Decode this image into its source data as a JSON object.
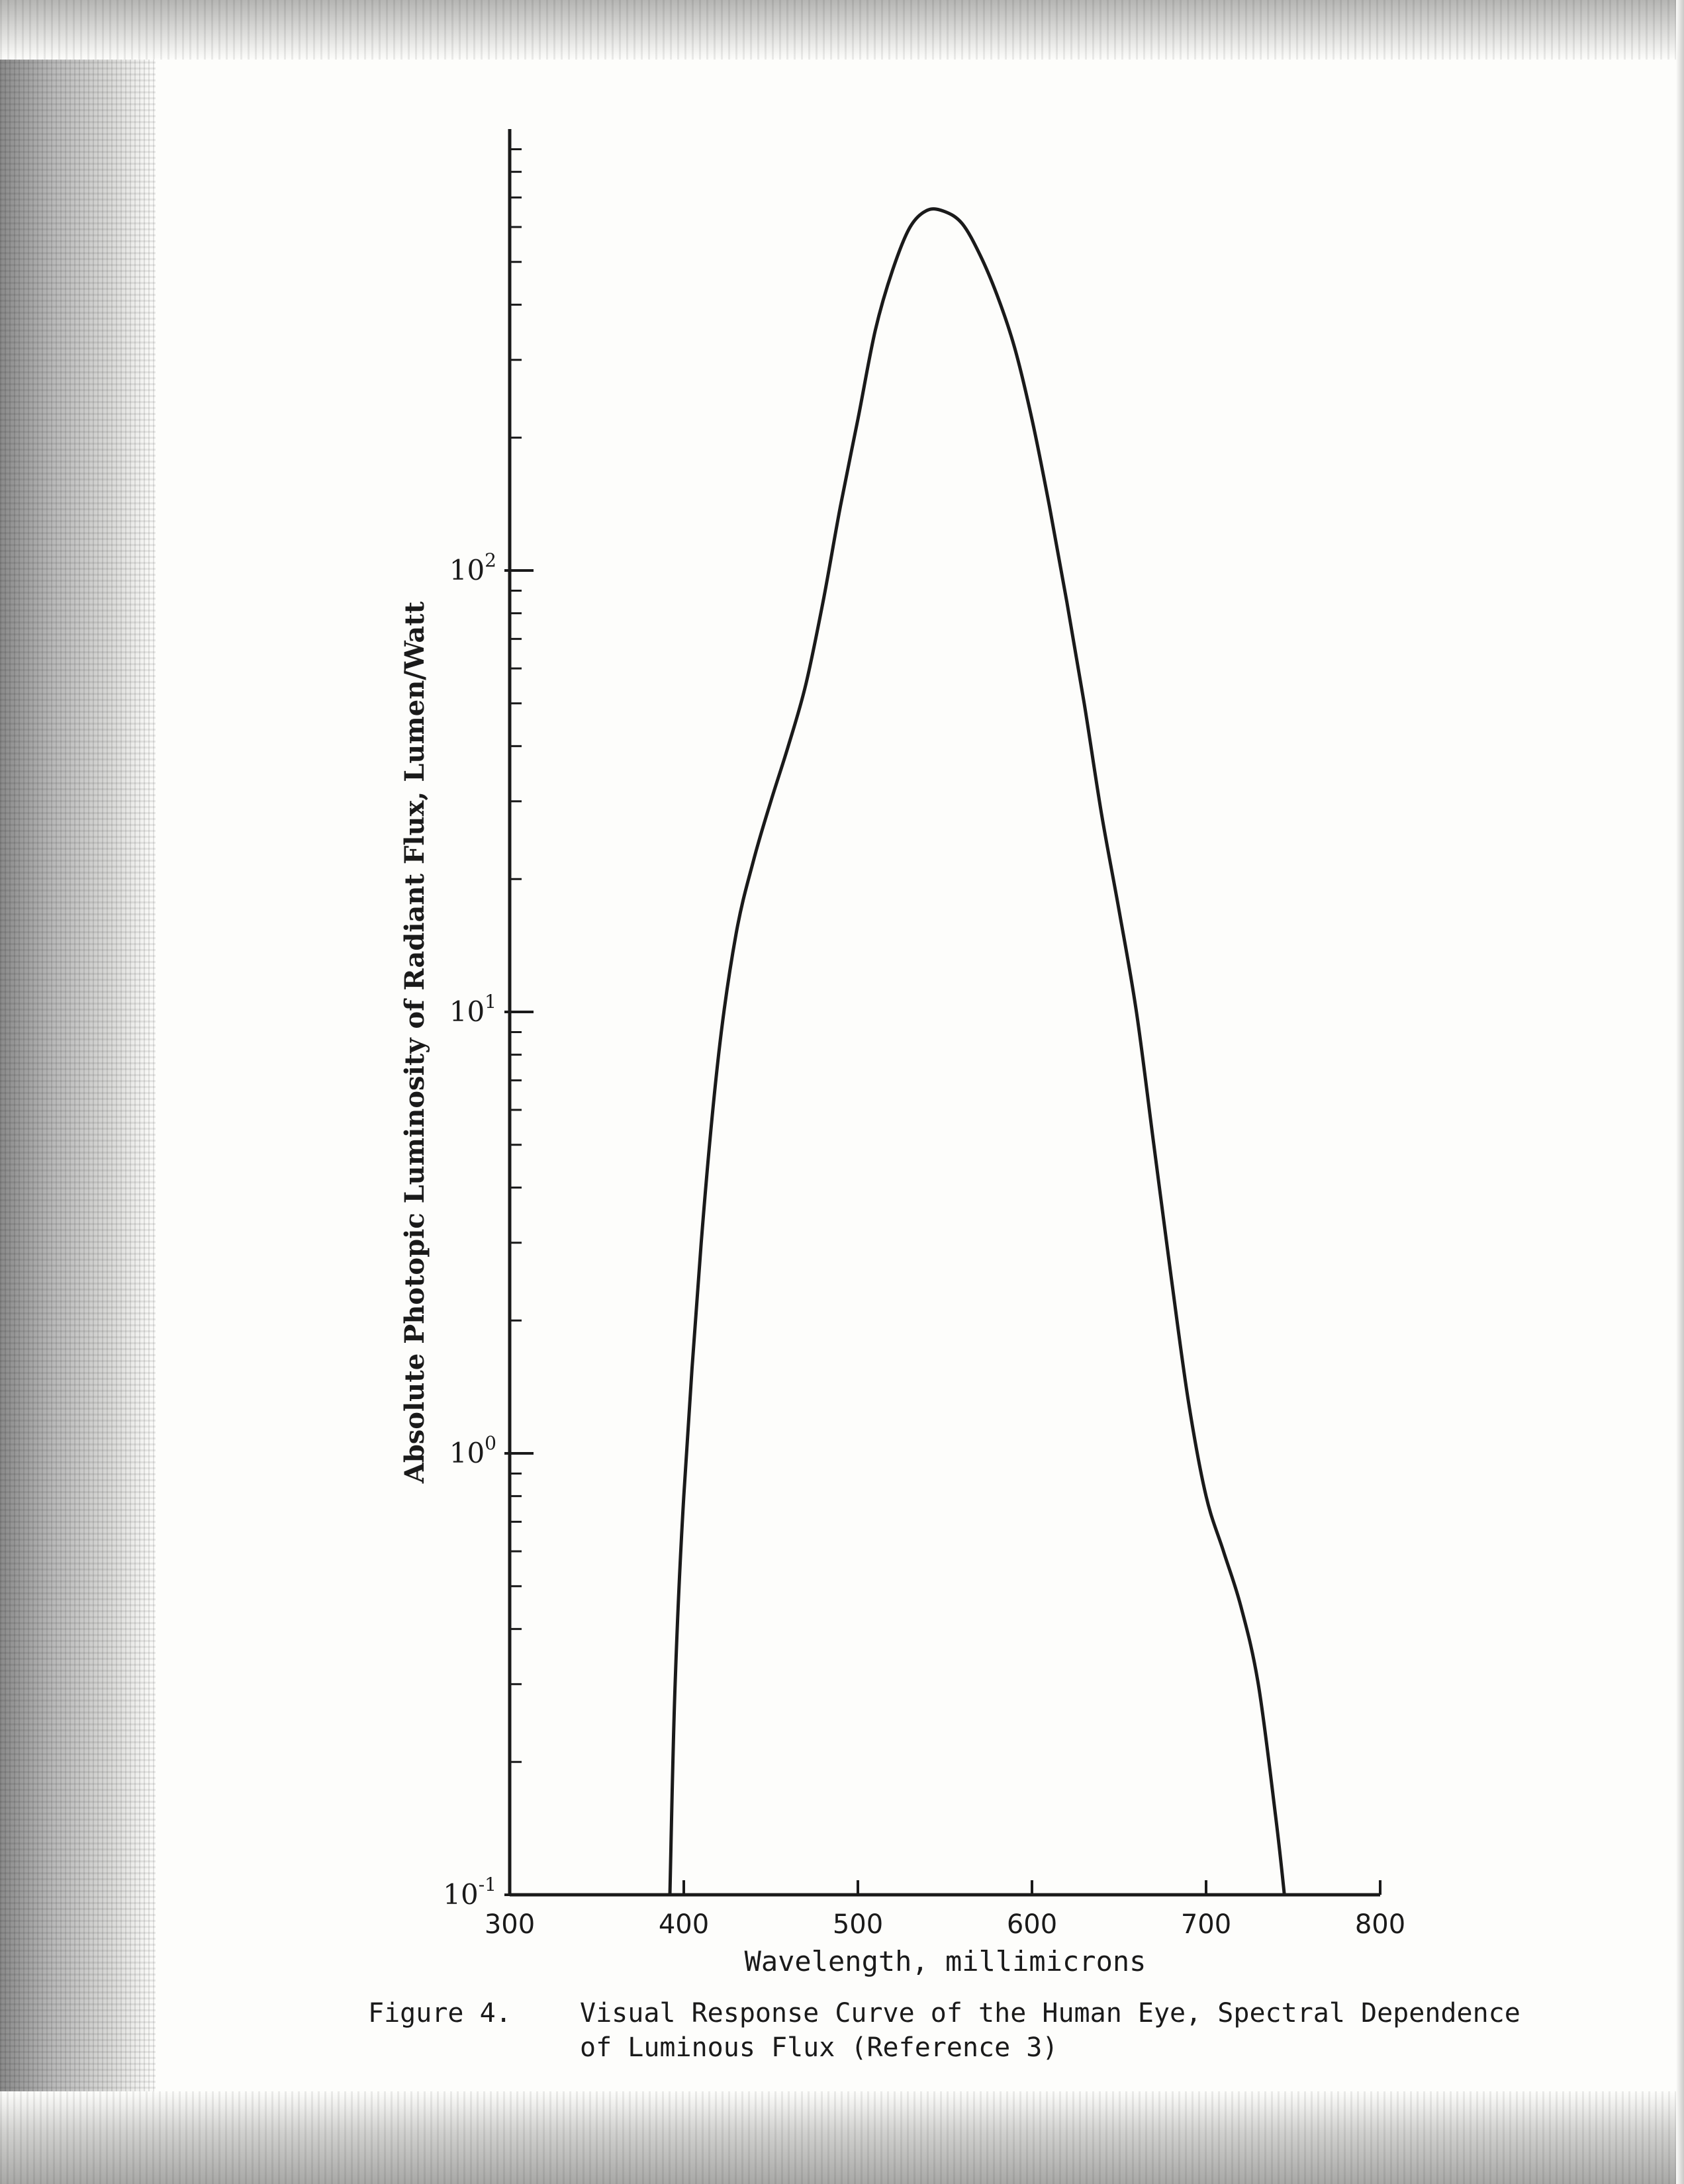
{
  "chart_data": {
    "type": "line",
    "title": "",
    "xlabel": "Wavelength, millimicrons",
    "ylabel": "Absolute Photopic Luminosity of Radiant Flux, Lumen/Watt",
    "xlim": [
      300,
      800
    ],
    "ylim": [
      0.1,
      1000
    ],
    "yscale": "log",
    "grid": false,
    "legend": "none",
    "x_ticks": [
      "300",
      "400",
      "500",
      "600",
      "700",
      "800"
    ],
    "y_ticks": [
      {
        "base": "10",
        "exp": "-1"
      },
      {
        "base": "10",
        "exp": "0"
      },
      {
        "base": "10",
        "exp": "1"
      },
      {
        "base": "10",
        "exp": "2"
      }
    ],
    "series": [
      {
        "x": [
          392,
          395,
          400,
          410,
          420,
          430,
          440,
          450,
          460,
          470,
          480,
          490,
          500,
          510,
          520,
          530,
          540,
          550,
          560,
          570,
          580,
          590,
          600,
          610,
          620,
          630,
          640,
          650,
          660,
          670,
          680,
          690,
          700,
          710,
          720,
          730,
          740,
          745
        ],
        "y": [
          0.1,
          0.3,
          0.8,
          3,
          8,
          15,
          22,
          30,
          40,
          55,
          85,
          140,
          220,
          350,
          480,
          600,
          655,
          650,
          610,
          520,
          420,
          320,
          220,
          140,
          85,
          50,
          28,
          17,
          10,
          5,
          2.5,
          1.3,
          0.8,
          0.6,
          0.45,
          0.3,
          0.15,
          0.1
        ]
      }
    ]
  },
  "caption": {
    "number": "Figure 4.",
    "line1": "Visual Response Curve of the Human Eye, Spectral Dependence",
    "line2": "of Luminous Flux (Reference 3)"
  }
}
